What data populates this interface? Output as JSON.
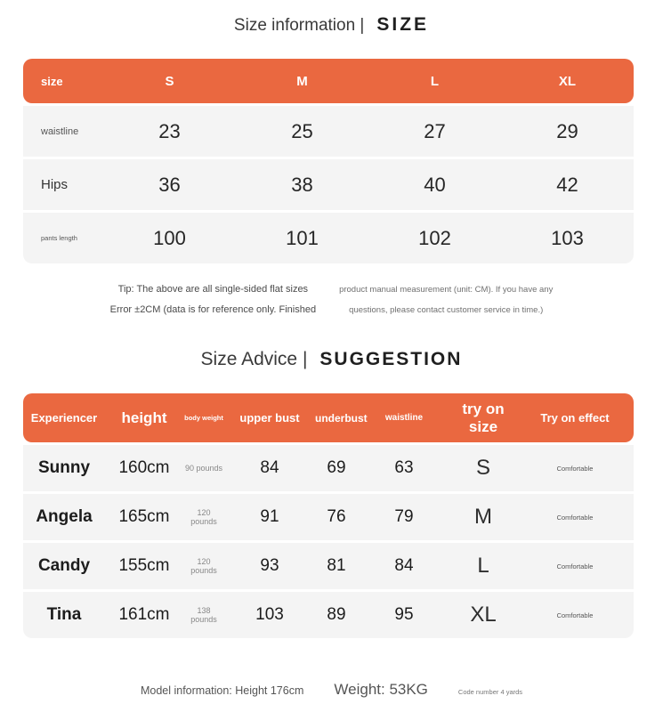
{
  "colors": {
    "accent": "#EA6840",
    "row_bg": "#F4F4F4"
  },
  "size_section": {
    "title_left": "Size information |",
    "title_right": "SIZE",
    "table": {
      "header": [
        "size",
        "S",
        "M",
        "L",
        "XL"
      ],
      "rows": [
        {
          "label": "waistline",
          "values": [
            "23",
            "25",
            "27",
            "29"
          ]
        },
        {
          "label": "Hips",
          "values": [
            "36",
            "38",
            "40",
            "42"
          ]
        },
        {
          "label": "pants length",
          "values": [
            "100",
            "101",
            "102",
            "103"
          ]
        }
      ]
    },
    "tip": {
      "left": [
        "Tip: The above are all single-sided flat sizes",
        "Error ±2CM (data is for reference only. Finished"
      ],
      "right": [
        "product manual measurement (unit: CM). If you have any",
        "questions, please contact customer service in time.)"
      ]
    }
  },
  "advice_section": {
    "title_left": "Size Advice |",
    "title_right": "SUGGESTION",
    "table": {
      "header": [
        "Experiencer",
        "height",
        "body weight",
        "upper bust",
        "underbust",
        "waistline",
        "try on size",
        "Try on effect"
      ],
      "rows": [
        [
          "Sunny",
          "160cm",
          "90 pounds",
          "84",
          "69",
          "63",
          "S",
          "Comfortable"
        ],
        [
          "Angela",
          "165cm",
          "120 pounds",
          "91",
          "76",
          "79",
          "M",
          "Comfortable"
        ],
        [
          "Candy",
          "155cm",
          "120 pounds",
          "93",
          "81",
          "84",
          "L",
          "Comfortable"
        ],
        [
          "Tina",
          "161cm",
          "138 pounds",
          "103",
          "89",
          "95",
          "XL",
          "Comfortable"
        ]
      ]
    }
  },
  "footer": {
    "model_info": "Model information: Height 176cm",
    "weight": "Weight: 53KG",
    "code": "Code number 4 yards"
  }
}
